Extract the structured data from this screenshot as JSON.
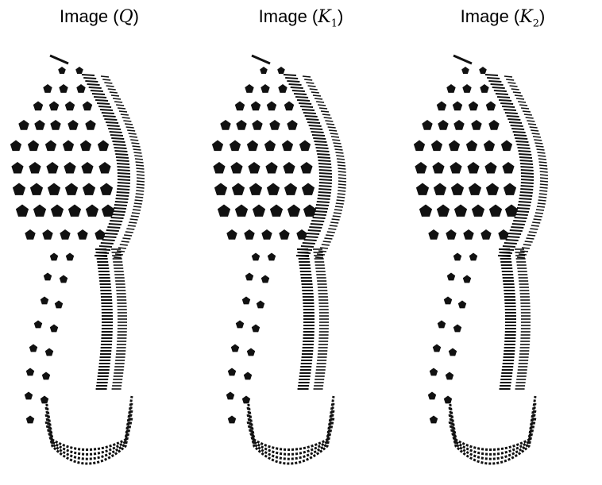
{
  "figure": {
    "panels": [
      {
        "prefix": "Image (",
        "symbol": "Q",
        "sub": "",
        "suffix": ")",
        "shoeprint_icon": "shoeprint-icon"
      },
      {
        "prefix": "Image (",
        "symbol": "K",
        "sub": "1",
        "suffix": ")",
        "shoeprint_icon": "shoeprint-icon"
      },
      {
        "prefix": "Image (",
        "symbol": "K",
        "sub": "2",
        "suffix": ")",
        "shoeprint_icon": "shoeprint-icon"
      }
    ],
    "colors": {
      "ink": "#111111",
      "background": "#ffffff"
    }
  }
}
